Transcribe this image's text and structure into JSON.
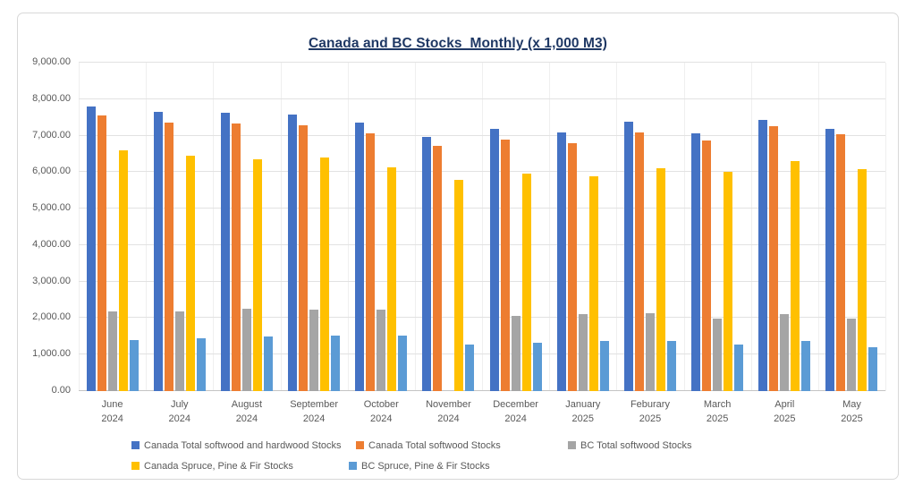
{
  "title": "Canada and BC Stocks  Monthly (x 1,000 M3)",
  "title_color": "#1f3864",
  "chart_data": {
    "type": "bar",
    "title": "Canada and BC Stocks  Monthly (x 1,000 M3)",
    "xlabel": "",
    "ylabel": "",
    "ylim": [
      0,
      9000
    ],
    "y_tick_step": 1000,
    "y_tick_labels": [
      "0.00",
      "1,000.00",
      "2,000.00",
      "3,000.00",
      "4,000.00",
      "5,000.00",
      "6,000.00",
      "7,000.00",
      "8,000.00",
      "9,000.00"
    ],
    "grid": "horizontal",
    "legend_position": "bottom",
    "categories": [
      {
        "month": "June",
        "year": "2024"
      },
      {
        "month": "July",
        "year": "2024"
      },
      {
        "month": "August",
        "year": "2024"
      },
      {
        "month": "September",
        "year": "2024"
      },
      {
        "month": "October",
        "year": "2024"
      },
      {
        "month": "November",
        "year": "2024"
      },
      {
        "month": "December",
        "year": "2024"
      },
      {
        "month": "January",
        "year": "2025"
      },
      {
        "month": "Feburary",
        "year": "2025"
      },
      {
        "month": "March",
        "year": "2025"
      },
      {
        "month": "April",
        "year": "2025"
      },
      {
        "month": "May",
        "year": "2025"
      }
    ],
    "series": [
      {
        "name": "Canada Total softwood and hardwood Stocks",
        "color": "#4472c4",
        "values": [
          7800,
          7650,
          7620,
          7570,
          7350,
          6970,
          7180,
          7100,
          7390,
          7060,
          7430,
          7180
        ]
      },
      {
        "name": "Canada Total softwood Stocks",
        "color": "#ed7d31",
        "values": [
          7550,
          7370,
          7330,
          7280,
          7060,
          6730,
          6900,
          6800,
          7080,
          6860,
          7250,
          7030
        ]
      },
      {
        "name": "BC Total softwood Stocks",
        "color": "#a5a5a5",
        "values": [
          2180,
          2190,
          2260,
          2240,
          2240,
          null,
          2050,
          2120,
          2130,
          1990,
          2100,
          1990
        ]
      },
      {
        "name": "Canada Spruce, Pine & Fir Stocks",
        "color": "#ffc000",
        "values": [
          6600,
          6450,
          6360,
          6390,
          6130,
          5790,
          5960,
          5890,
          6110,
          6000,
          6310,
          6080
        ]
      },
      {
        "name": "BC Spruce, Pine & Fir Stocks",
        "color": "#5b9bd5",
        "values": [
          1410,
          1450,
          1490,
          1520,
          1520,
          1280,
          1330,
          1370,
          1370,
          1280,
          1380,
          1210
        ]
      }
    ],
    "legend_rows": [
      [
        0,
        1,
        2
      ],
      [
        3,
        4
      ]
    ]
  }
}
